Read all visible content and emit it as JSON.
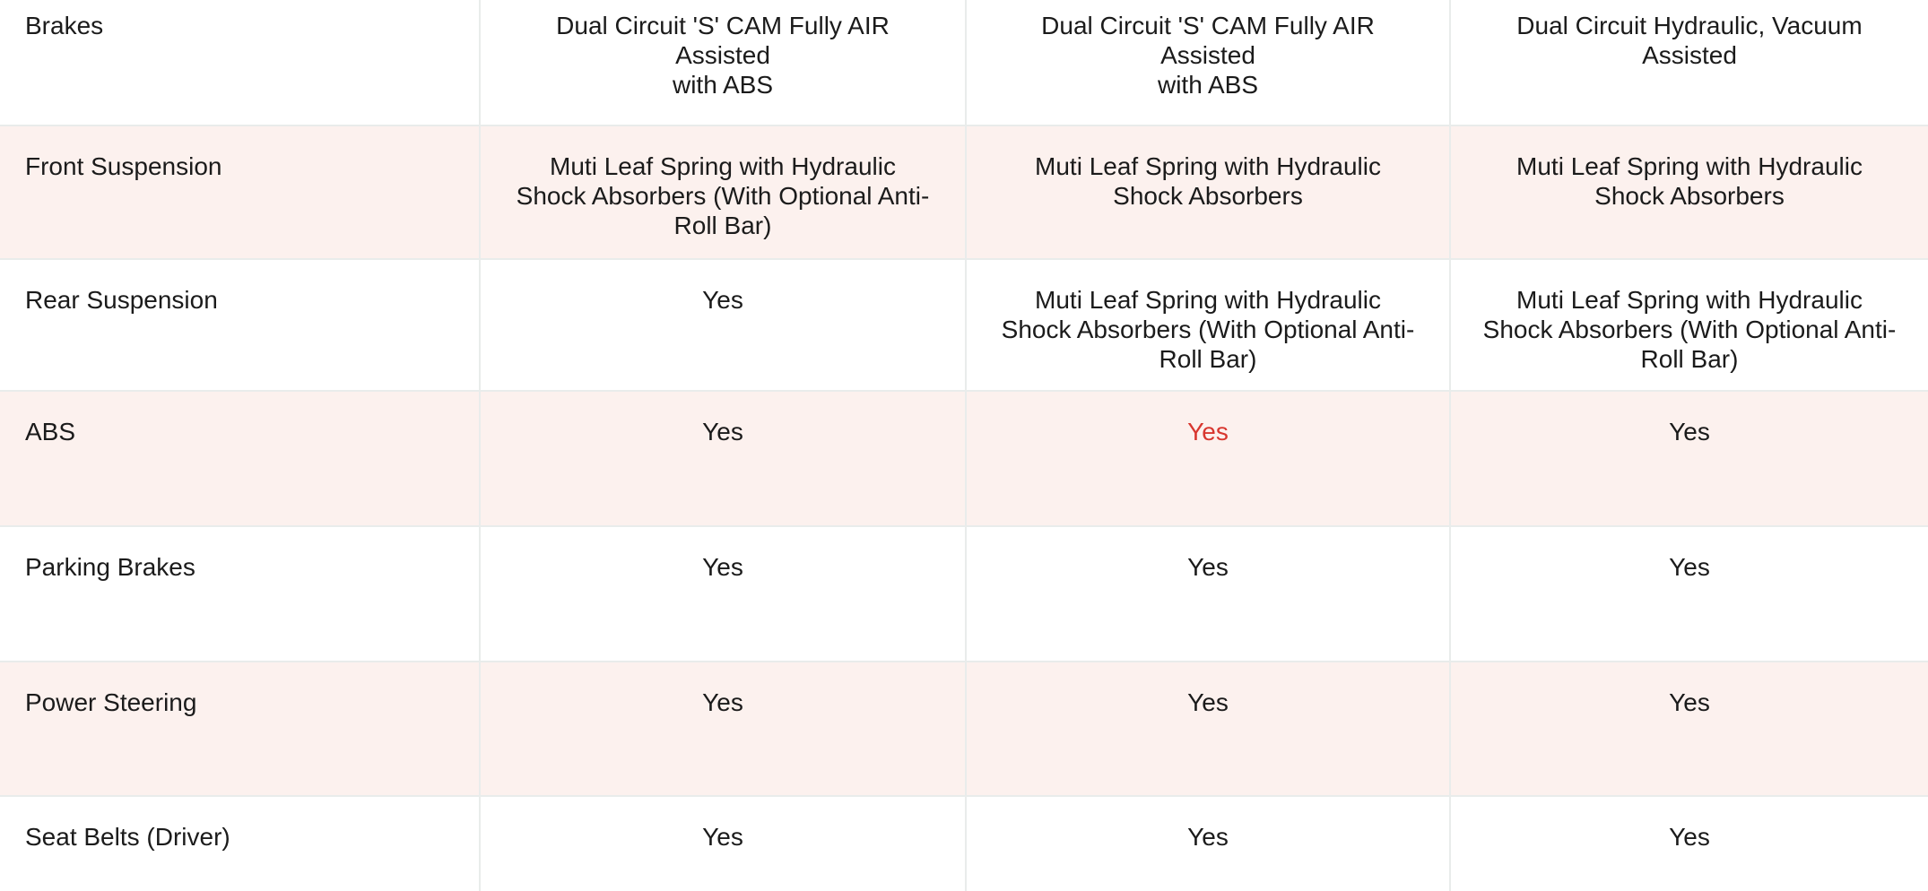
{
  "table": {
    "rows": [
      {
        "label": "Brakes",
        "values": [
          {
            "text": "Dual Circuit 'S' CAM Fully AIR Assisted\nwith ABS"
          },
          {
            "text": "Dual Circuit 'S' CAM Fully AIR Assisted\nwith ABS"
          },
          {
            "text": "Dual Circuit Hydraulic, Vacuum\nAssisted"
          }
        ]
      },
      {
        "label": "Front Suspension",
        "values": [
          {
            "text": "Muti Leaf Spring with Hydraulic\nShock Absorbers (With Optional Anti-\nRoll Bar)"
          },
          {
            "text": "Muti Leaf Spring with Hydraulic\nShock Absorbers"
          },
          {
            "text": "Muti Leaf Spring with Hydraulic\nShock Absorbers"
          }
        ]
      },
      {
        "label": "Rear Suspension",
        "values": [
          {
            "text": "Yes"
          },
          {
            "text": "Muti Leaf Spring with Hydraulic\nShock Absorbers (With Optional Anti-\nRoll Bar)"
          },
          {
            "text": "Muti Leaf Spring with Hydraulic\nShock Absorbers (With Optional Anti-\nRoll Bar)"
          }
        ]
      },
      {
        "label": "ABS",
        "values": [
          {
            "text": "Yes"
          },
          {
            "text": "Yes",
            "red": true
          },
          {
            "text": "Yes"
          }
        ]
      },
      {
        "label": "Parking Brakes",
        "values": [
          {
            "text": "Yes"
          },
          {
            "text": "Yes"
          },
          {
            "text": "Yes"
          }
        ]
      },
      {
        "label": "Power Steering",
        "values": [
          {
            "text": "Yes"
          },
          {
            "text": "Yes"
          },
          {
            "text": "Yes"
          }
        ]
      },
      {
        "label": "Seat Belts (Driver)",
        "values": [
          {
            "text": "Yes"
          },
          {
            "text": "Yes"
          },
          {
            "text": "Yes"
          }
        ]
      }
    ],
    "colors": {
      "stripe_bg": "#fcf1ee",
      "row_bg": "#ffffff",
      "border": "#e9eceb",
      "text": "#1b1b1b",
      "highlight_red": "#d8372f"
    }
  }
}
